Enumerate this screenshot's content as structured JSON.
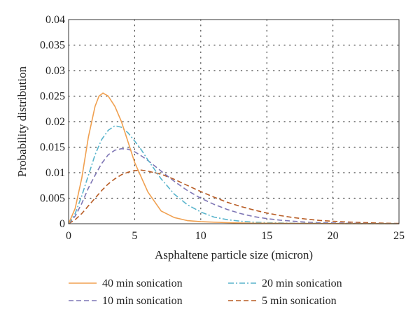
{
  "chart_data": {
    "type": "line",
    "xlabel": "Asphaltene particle size (micron)",
    "ylabel": "Probability distribution",
    "xlim": [
      0,
      25
    ],
    "ylim": [
      0,
      0.04
    ],
    "x_ticks": [
      "0",
      "5",
      "10",
      "15",
      "20",
      "25"
    ],
    "y_ticks": [
      "0",
      "0.005",
      "0.01",
      "0.015",
      "0.02",
      "0.025",
      "0.03",
      "0.035",
      "0.04"
    ],
    "grid": "dotted",
    "legend_position": "bottom",
    "series": [
      {
        "name": "40 min sonication",
        "color": "#F0A050",
        "style": "solid",
        "x": [
          0,
          0.5,
          1,
          1.5,
          2,
          2.3,
          2.6,
          3,
          3.5,
          4,
          4.5,
          5,
          6,
          7,
          8,
          9,
          10,
          11,
          12,
          13,
          14,
          15,
          16,
          17,
          18,
          19,
          20,
          21,
          22,
          23,
          24,
          25
        ],
        "y": [
          0,
          0.003,
          0.009,
          0.017,
          0.023,
          0.025,
          0.0256,
          0.025,
          0.023,
          0.02,
          0.016,
          0.012,
          0.0062,
          0.0025,
          0.0012,
          0.0006,
          0.0004,
          0.0003,
          0.0002,
          0.00015,
          0.0001,
          0.0001,
          8e-05,
          6e-05,
          5e-05,
          4e-05,
          3e-05,
          2e-05,
          1e-05,
          1e-05,
          1e-05,
          0
        ]
      },
      {
        "name": "20 min sonication",
        "color": "#58B4CC",
        "style": "dash-dot",
        "x": [
          0,
          0.5,
          1,
          1.5,
          2,
          2.5,
          3,
          3.5,
          4,
          4.5,
          5,
          5.5,
          6,
          7,
          8,
          9,
          10,
          11,
          12,
          13,
          14,
          15,
          16,
          17,
          18,
          19,
          20,
          21,
          22,
          23,
          24,
          25
        ],
        "y": [
          0,
          0.002,
          0.0055,
          0.0095,
          0.0135,
          0.0165,
          0.0183,
          0.0192,
          0.0189,
          0.0178,
          0.0162,
          0.0145,
          0.0125,
          0.0088,
          0.0058,
          0.0037,
          0.0023,
          0.0013,
          0.0008,
          0.0005,
          0.0003,
          0.0002,
          0.00015,
          0.0001,
          8e-05,
          6e-05,
          4e-05,
          3e-05,
          2e-05,
          1e-05,
          1e-05,
          0
        ]
      },
      {
        "name": "10 min sonication",
        "color": "#7E76B5",
        "style": "dashed",
        "x": [
          0,
          0.5,
          1,
          1.5,
          2,
          2.5,
          3,
          3.5,
          4,
          4.5,
          5,
          5.5,
          6,
          7,
          8,
          9,
          10,
          11,
          12,
          13,
          14,
          15,
          16,
          17,
          18,
          19,
          20,
          21,
          22,
          23,
          24,
          25
        ],
        "y": [
          0,
          0.0015,
          0.004,
          0.007,
          0.0095,
          0.0118,
          0.0135,
          0.0144,
          0.0147,
          0.0146,
          0.0141,
          0.0133,
          0.0124,
          0.0103,
          0.0083,
          0.0065,
          0.005,
          0.0038,
          0.0028,
          0.002,
          0.0014,
          0.001,
          0.0007,
          0.0005,
          0.0003,
          0.0002,
          0.00015,
          0.0001,
          6e-05,
          3e-05,
          2e-05,
          1e-05
        ]
      },
      {
        "name": "5 min sonication",
        "color": "#B85C24",
        "style": "dashed",
        "x": [
          0,
          0.5,
          1,
          1.5,
          2,
          2.5,
          3,
          3.5,
          4,
          4.5,
          5,
          5.5,
          6,
          7,
          8,
          9,
          10,
          11,
          12,
          13,
          14,
          15,
          16,
          17,
          18,
          19,
          20,
          21,
          22,
          23,
          24,
          25
        ],
        "y": [
          0,
          0.0008,
          0.002,
          0.0035,
          0.005,
          0.0065,
          0.0078,
          0.0088,
          0.0096,
          0.0101,
          0.0104,
          0.0105,
          0.0103,
          0.0097,
          0.0087,
          0.0075,
          0.0063,
          0.0052,
          0.0042,
          0.0034,
          0.0027,
          0.0021,
          0.0016,
          0.0012,
          0.0009,
          0.00065,
          0.00048,
          0.00034,
          0.00024,
          0.00016,
          0.0001,
          5e-05
        ]
      }
    ]
  }
}
